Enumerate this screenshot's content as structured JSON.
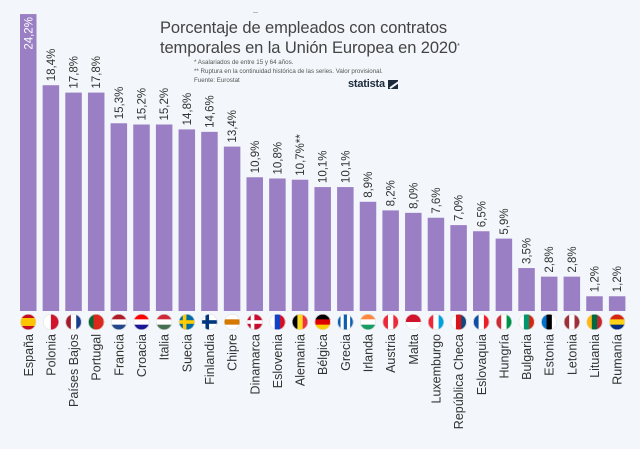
{
  "header": {
    "title_line1": "Porcentaje de empleados con contratos",
    "title_line2": "temporales en la Unión Europea en 2020",
    "title_superscript": "*",
    "notes": [
      "*   Asalariados de entre 15 y 64 años.",
      "** Ruptura en la continuidad histórica de las series. Valor provisional.",
      "Fuente: Eurostat"
    ],
    "brand": "statista"
  },
  "colors": {
    "bar": "#9b7fc4",
    "background": "#f3f6fa",
    "label_inside": "#ffffff",
    "label_outside": "#333333"
  },
  "chart_data": {
    "type": "bar",
    "title": "Porcentaje de empleados con contratos temporales en la Unión Europea en 2020*",
    "xlabel": "",
    "ylabel": "",
    "ylim": [
      0,
      25
    ],
    "grid": false,
    "unit": "%",
    "categories": [
      "España",
      "Polonia",
      "Países Bajos",
      "Portugal",
      "Francia",
      "Croacia",
      "Italia",
      "Suecia",
      "Finlandia",
      "Chipre",
      "Dinamarca",
      "Eslovenia",
      "Alemania",
      "Bélgica",
      "Grecia",
      "Irlanda",
      "Austria",
      "Malta",
      "Luxemburgo",
      "República Checa",
      "Eslovaquia",
      "Hungría",
      "Bulgaria",
      "Estonia",
      "Letonia",
      "Lituania",
      "Rumanía"
    ],
    "values": [
      24.2,
      18.4,
      17.8,
      17.8,
      15.3,
      15.2,
      15.2,
      14.8,
      14.6,
      13.4,
      10.9,
      10.8,
      10.7,
      10.1,
      10.1,
      8.9,
      8.2,
      8.0,
      7.6,
      7.0,
      6.5,
      5.9,
      3.5,
      2.8,
      2.8,
      1.2,
      1.2
    ],
    "value_labels": [
      "24,2%",
      "18,4%",
      "17,8%",
      "17,8%",
      "15,3%",
      "15,2%",
      "15,2%",
      "14,8%",
      "14,6%",
      "13,4%",
      "10,9%",
      "10,8%",
      "10,7%**",
      "10,1%",
      "10,1%",
      "8,9%",
      "8,2%",
      "8,0%",
      "7,6%",
      "7,0%",
      "6,5%",
      "5,9%",
      "3,5%",
      "2,8%",
      "2,8%",
      "1,2%",
      "1,2%"
    ],
    "flags": [
      {
        "name": "spain-flag-icon",
        "dir": "h",
        "stripes": [
          "#c60b1e",
          "#ffc400",
          "#ffc400",
          "#c60b1e"
        ]
      },
      {
        "name": "malta-flag-icon",
        "dir": "v",
        "stripes": [
          "#ffffff",
          "#cf142b"
        ]
      },
      {
        "name": "france-flag-icon",
        "dir": "v",
        "stripes": [
          "#a01c2c",
          "#ffffff",
          "#1a3e8c"
        ]
      },
      {
        "name": "portugal-flag-icon",
        "dir": "v",
        "stripes": [
          "#046a38",
          "#da291c",
          "#da291c"
        ]
      },
      {
        "name": "netherlands-flag-icon",
        "dir": "h",
        "stripes": [
          "#ae1c28",
          "#ffffff",
          "#21468b"
        ]
      },
      {
        "name": "croatia-flag-icon",
        "dir": "h",
        "stripes": [
          "#ff0000",
          "#ffffff",
          "#171796"
        ]
      },
      {
        "name": "hungary-flag-icon",
        "dir": "h",
        "stripes": [
          "#ce2939",
          "#ffffff",
          "#477050"
        ]
      },
      {
        "name": "sweden-flag-icon",
        "dir": "cross",
        "stripes": [
          "#006aa7",
          "#fecc00"
        ]
      },
      {
        "name": "finland-flag-icon",
        "dir": "cross",
        "stripes": [
          "#ffffff",
          "#003580"
        ]
      },
      {
        "name": "cyprus-flag-icon",
        "dir": "h",
        "stripes": [
          "#ffffff",
          "#d57800",
          "#ffffff"
        ]
      },
      {
        "name": "denmark-flag-icon",
        "dir": "cross",
        "stripes": [
          "#c8102e",
          "#ffffff"
        ]
      },
      {
        "name": "slovenia-flag-icon",
        "dir": "v",
        "stripes": [
          "#ffffff",
          "#1240c8",
          "#d40d1f"
        ]
      },
      {
        "name": "belgium-flag-icon",
        "dir": "v",
        "stripes": [
          "#000000",
          "#fdda24",
          "#ef3340"
        ]
      },
      {
        "name": "germany-flag-icon",
        "dir": "h",
        "stripes": [
          "#000000",
          "#dd0000",
          "#ffce00"
        ]
      },
      {
        "name": "greece-flag-icon",
        "dir": "v",
        "stripes": [
          "#0d5eaf",
          "#ffffff",
          "#0d5eaf",
          "#ffffff",
          "#0d5eaf"
        ]
      },
      {
        "name": "ireland-flag-icon",
        "dir": "h",
        "stripes": [
          "#ff883e",
          "#ffffff",
          "#169b62"
        ]
      },
      {
        "name": "austria-flag-icon",
        "dir": "v",
        "stripes": [
          "#ed2939",
          "#ffffff",
          "#ed2939"
        ]
      },
      {
        "name": "malta-alt-flag-icon",
        "dir": "h",
        "stripes": [
          "#cf142b",
          "#ffffff"
        ]
      },
      {
        "name": "luxembourg-flag-icon",
        "dir": "v",
        "stripes": [
          "#ed2939",
          "#ffffff",
          "#00a1de"
        ]
      },
      {
        "name": "czech-flag-icon",
        "dir": "v",
        "stripes": [
          "#ffffff",
          "#d7141a",
          "#11457e"
        ]
      },
      {
        "name": "slovakia-flag-icon",
        "dir": "v",
        "stripes": [
          "#0b4ea2",
          "#ffffff",
          "#ee1c25"
        ]
      },
      {
        "name": "italy-flag-icon",
        "dir": "v",
        "stripes": [
          "#ce2b37",
          "#ffffff",
          "#009246"
        ]
      },
      {
        "name": "bulgaria-flag-icon",
        "dir": "v",
        "stripes": [
          "#ffffff",
          "#00966e",
          "#d62612"
        ]
      },
      {
        "name": "estonia-flag-icon",
        "dir": "v",
        "stripes": [
          "#0072ce",
          "#000000",
          "#ffffff"
        ]
      },
      {
        "name": "latvia-flag-icon",
        "dir": "v",
        "stripes": [
          "#9e3039",
          "#ffffff",
          "#9e3039"
        ]
      },
      {
        "name": "lithuania-flag-icon",
        "dir": "v",
        "stripes": [
          "#fdb913",
          "#006a44",
          "#c1272d"
        ]
      },
      {
        "name": "romania-flag-icon",
        "dir": "h",
        "stripes": [
          "#d62612",
          "#fcd116",
          "#002b7f"
        ]
      }
    ]
  }
}
